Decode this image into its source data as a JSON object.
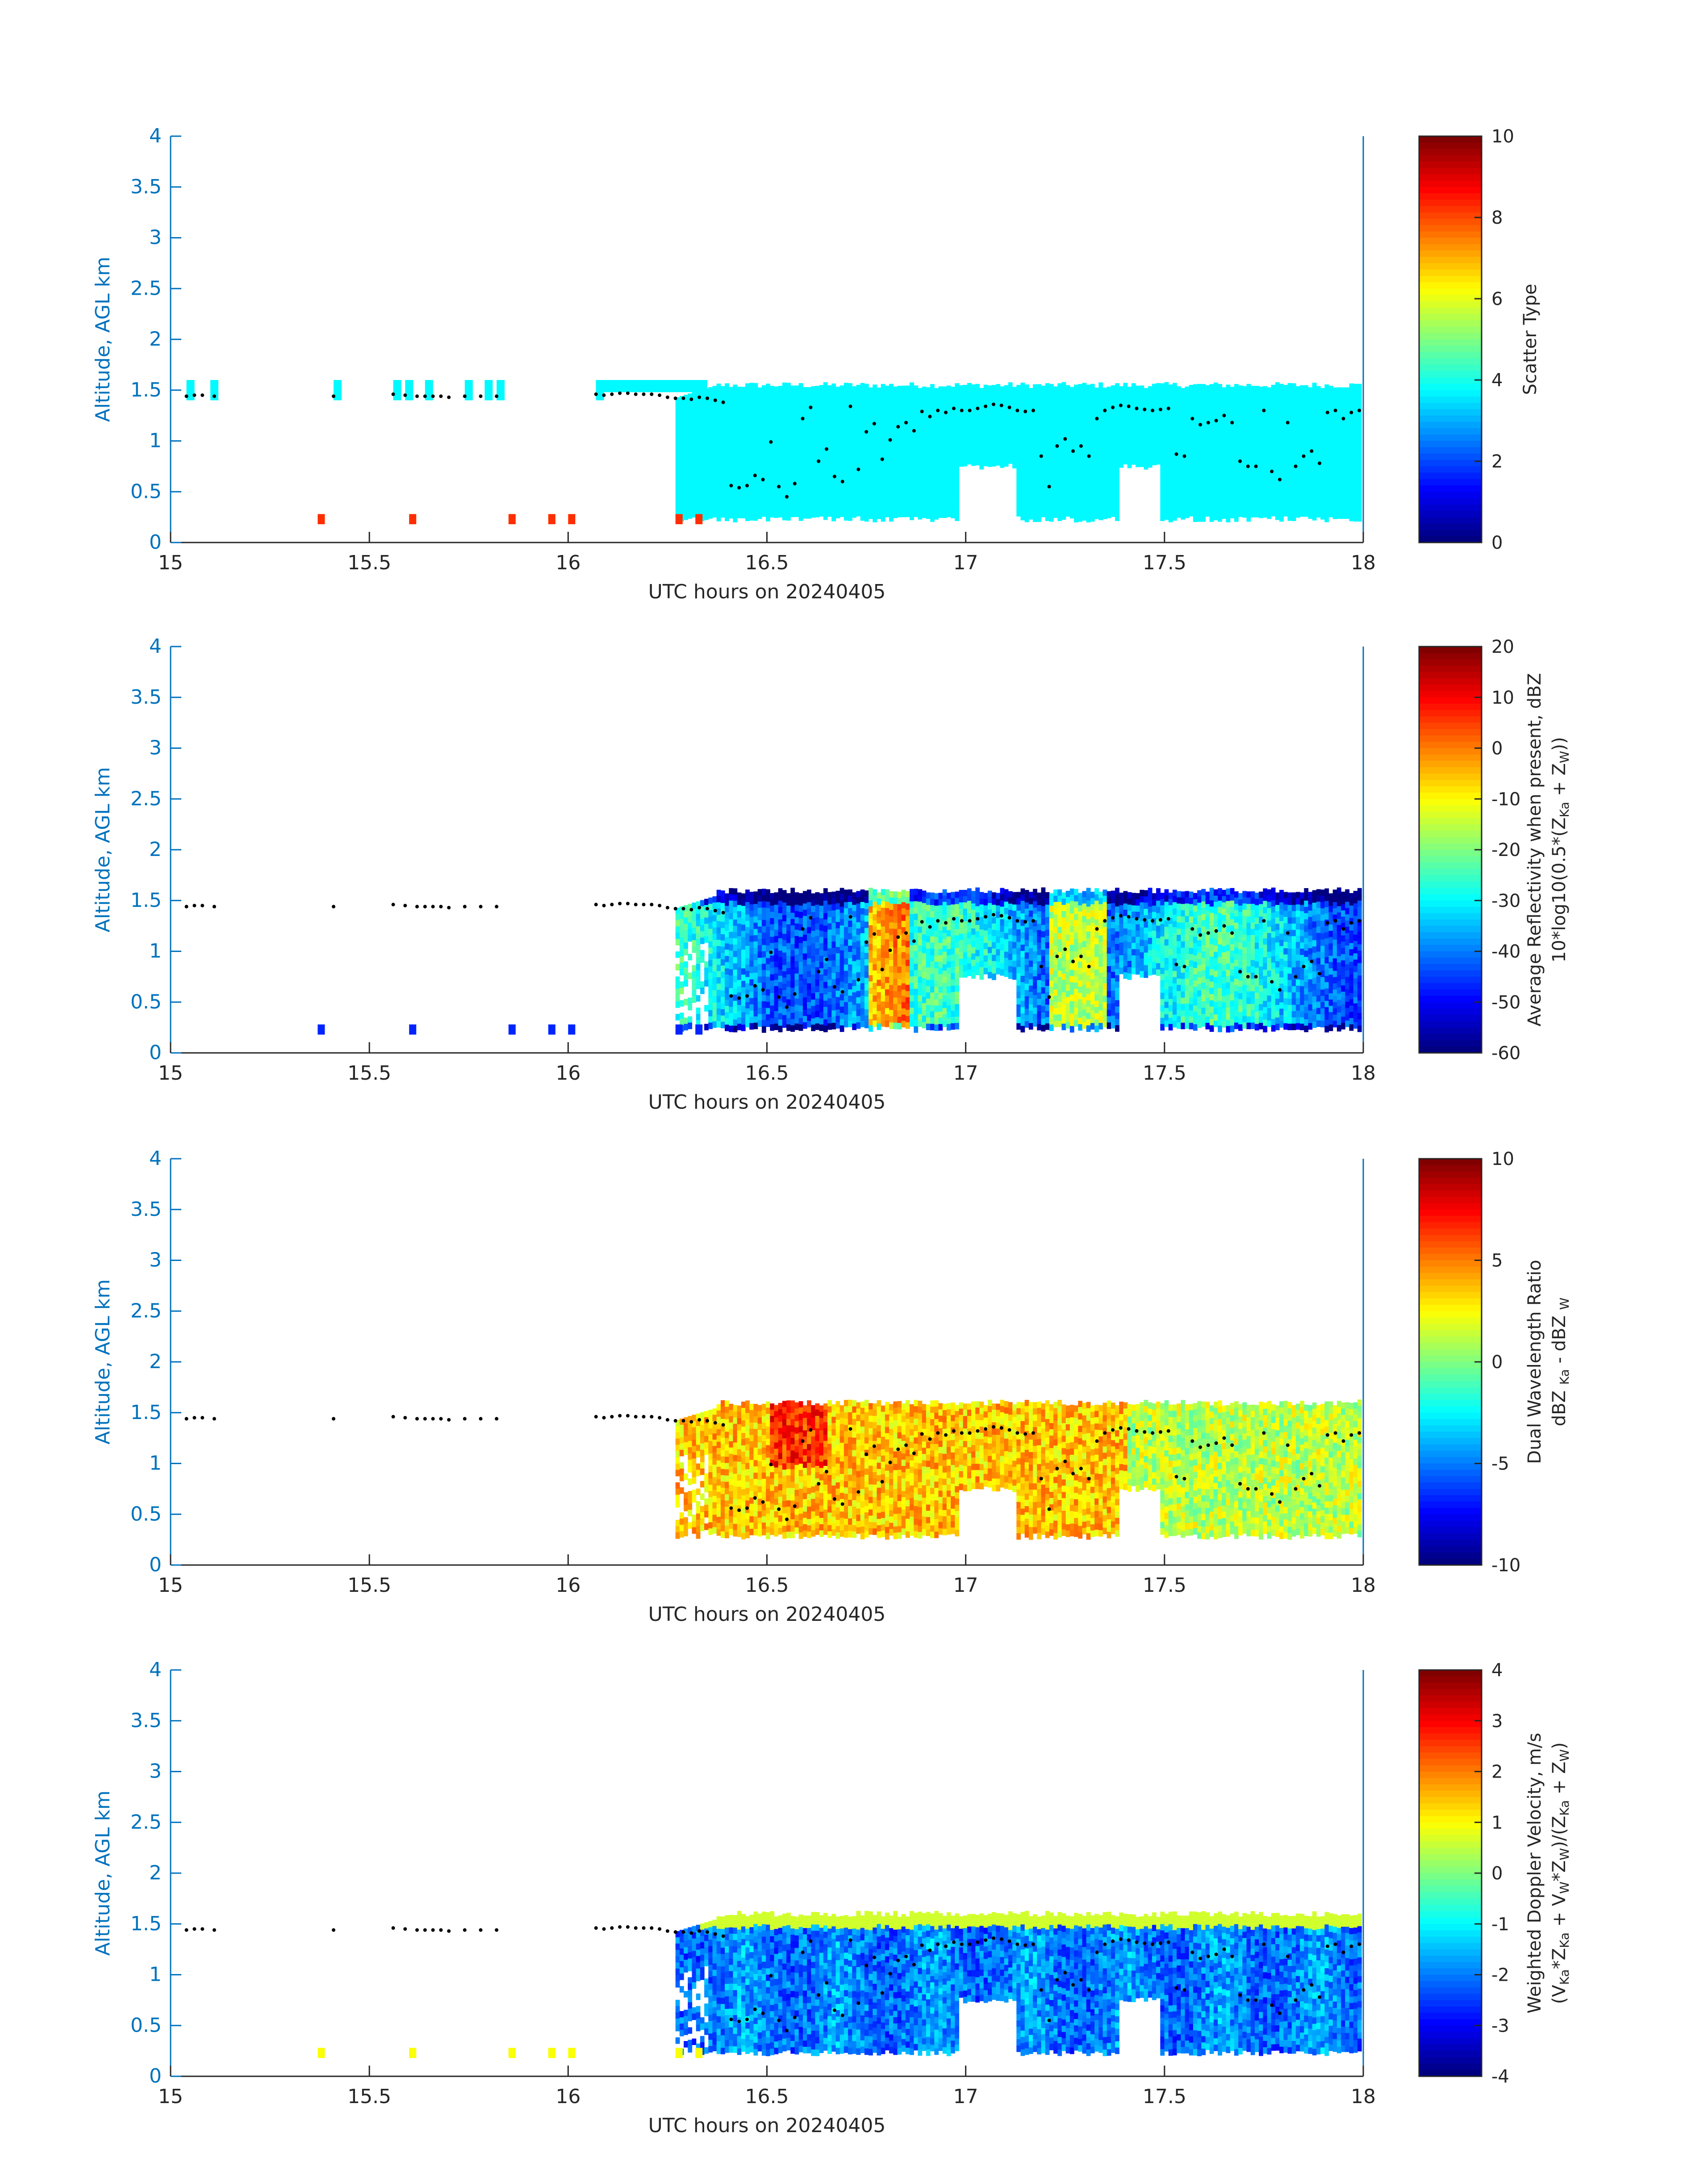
{
  "figure": {
    "date_label": "UTC hours on 20240405",
    "ylabel": "Altitude, AGL km",
    "x_ticks": [
      "15",
      "15.5",
      "16",
      "16.5",
      "17",
      "17.5",
      "18"
    ],
    "y_ticks": [
      "0",
      "0.5",
      "1",
      "1.5",
      "2",
      "2.5",
      "3",
      "3.5",
      "4"
    ],
    "axis_color": "#0072bd",
    "colormap": "jet"
  },
  "chart_data": [
    {
      "type": "heatmap",
      "name": "scatter-type",
      "xlabel": "UTC hours on 20240405",
      "ylabel": "Altitude, AGL km",
      "xlim": [
        15,
        18
      ],
      "ylim": [
        0,
        4
      ],
      "colorbar": {
        "label": "Scatter Type",
        "label2": "",
        "ticks": [
          "0",
          "2",
          "4",
          "6",
          "8",
          "10"
        ],
        "range": [
          0,
          10
        ]
      },
      "description_of_field": "mostly constant scatter type ~3.7 (aqua) between 0.2 and 1.6 km from 16.3 h onward, type ~8.3 (red-orange) near surface",
      "cloud_top_km": 1.55,
      "cloud_base_km": 0.2
    },
    {
      "type": "heatmap",
      "name": "average-reflectivity",
      "xlabel": "UTC hours on 20240405",
      "ylabel": "Altitude, AGL km",
      "xlim": [
        15,
        18
      ],
      "ylim": [
        0,
        4
      ],
      "colorbar": {
        "label": "Average Reflectivity when present, dBZ",
        "label2": "10*log10(0.5*(Z",
        "ticks": [
          "20",
          "10",
          "0",
          "-10",
          "-20",
          "-30",
          "-40",
          "-50",
          "-60"
        ],
        "range": [
          -60,
          20
        ]
      },
      "cloud_top_km": 1.6,
      "cloud_base_km": 0.2
    },
    {
      "type": "heatmap",
      "name": "dual-wavelength-ratio",
      "xlabel": "UTC hours on 20240405",
      "ylabel": "Altitude, AGL km",
      "xlim": [
        15,
        18
      ],
      "ylim": [
        0,
        4
      ],
      "colorbar": {
        "label": "Dual Wavelength Ratio",
        "label2": "dBZ",
        "ticks": [
          "10",
          "5",
          "0",
          "-5",
          "-10"
        ],
        "range": [
          -10,
          10
        ]
      },
      "cloud_top_km": 1.6,
      "cloud_base_km": 0.25
    },
    {
      "type": "heatmap",
      "name": "weighted-doppler-velocity",
      "xlabel": "UTC hours on 20240405",
      "ylabel": "Altitude, AGL km",
      "xlim": [
        15,
        18
      ],
      "ylim": [
        0,
        4
      ],
      "colorbar": {
        "label": "Weighted Doppler Velocity, m/s",
        "label2": "(V",
        "ticks": [
          "4",
          "3",
          "2",
          "1",
          "0",
          "-1",
          "-2",
          "-3",
          "-4"
        ],
        "range": [
          -4,
          4
        ]
      },
      "cloud_top_km": 1.6,
      "cloud_base_km": 0.2
    }
  ],
  "colorbar_subscripts": {
    "refl_line2": [
      "10*log10(0.5*(Z",
      "Ka",
      " + Z",
      "W",
      "))"
    ],
    "dwr_line2": [
      "dBZ ",
      "Ka",
      " - dBZ ",
      "W"
    ],
    "vel_line2": [
      "(V",
      "Ka",
      "*Z",
      "Ka",
      " + V",
      "W",
      "*Z",
      "W",
      ")/(Z",
      "Ka",
      " + Z",
      "W",
      ")"
    ]
  },
  "lidar_points": {
    "series_name": "",
    "x": [
      15.04,
      15.06,
      15.08,
      15.11,
      15.41,
      15.56,
      15.59,
      15.62,
      15.64,
      15.66,
      15.68,
      15.7,
      15.74,
      15.78,
      15.82,
      16.07,
      16.09,
      16.11,
      16.13,
      16.15,
      16.17,
      16.19,
      16.21,
      16.23,
      16.25,
      16.27,
      16.29,
      16.31,
      16.33,
      16.35,
      16.37,
      16.39,
      16.41,
      16.43,
      16.45,
      16.47,
      16.49,
      16.51,
      16.53,
      16.55,
      16.57,
      16.59,
      16.61,
      16.63,
      16.65,
      16.67,
      16.69,
      16.71,
      16.73,
      16.75,
      16.77,
      16.79,
      16.81,
      16.83,
      16.85,
      16.87,
      16.89,
      16.91,
      16.93,
      16.95,
      16.97,
      16.99,
      17.01,
      17.03,
      17.05,
      17.07,
      17.09,
      17.11,
      17.13,
      17.15,
      17.17,
      17.19,
      17.21,
      17.23,
      17.25,
      17.27,
      17.29,
      17.31,
      17.33,
      17.35,
      17.37,
      17.39,
      17.41,
      17.43,
      17.45,
      17.47,
      17.49,
      17.51,
      17.53,
      17.55,
      17.57,
      17.59,
      17.61,
      17.63,
      17.65,
      17.67,
      17.69,
      17.71,
      17.73,
      17.75,
      17.77,
      17.79,
      17.81,
      17.83,
      17.85,
      17.87,
      17.89,
      17.91,
      17.93,
      17.95,
      17.97,
      17.99
    ],
    "y": [
      1.44,
      1.45,
      1.45,
      1.44,
      1.44,
      1.46,
      1.45,
      1.44,
      1.44,
      1.44,
      1.44,
      1.43,
      1.44,
      1.44,
      1.44,
      1.46,
      1.45,
      1.46,
      1.47,
      1.47,
      1.46,
      1.46,
      1.46,
      1.45,
      1.43,
      1.42,
      1.42,
      1.41,
      1.43,
      1.42,
      1.4,
      1.38,
      0.56,
      0.54,
      0.56,
      0.66,
      0.62,
      0.99,
      0.55,
      0.45,
      0.58,
      1.22,
      1.33,
      0.8,
      0.92,
      0.65,
      0.6,
      1.34,
      0.72,
      1.09,
      1.17,
      0.82,
      1.01,
      1.14,
      1.18,
      1.1,
      1.29,
      1.24,
      1.3,
      1.28,
      1.32,
      1.3,
      1.3,
      1.32,
      1.34,
      1.36,
      1.35,
      1.33,
      1.3,
      1.29,
      1.3,
      0.85,
      0.55,
      0.95,
      1.02,
      0.9,
      0.95,
      0.85,
      1.22,
      1.3,
      1.33,
      1.35,
      1.34,
      1.32,
      1.31,
      1.3,
      1.31,
      1.32,
      0.87,
      0.85,
      1.22,
      1.16,
      1.18,
      1.2,
      1.25,
      1.18,
      0.8,
      0.75,
      0.75,
      1.3,
      0.7,
      0.62,
      1.18,
      0.75,
      0.85,
      0.9,
      0.78,
      1.28,
      1.3,
      1.22,
      1.28,
      1.3
    ]
  }
}
